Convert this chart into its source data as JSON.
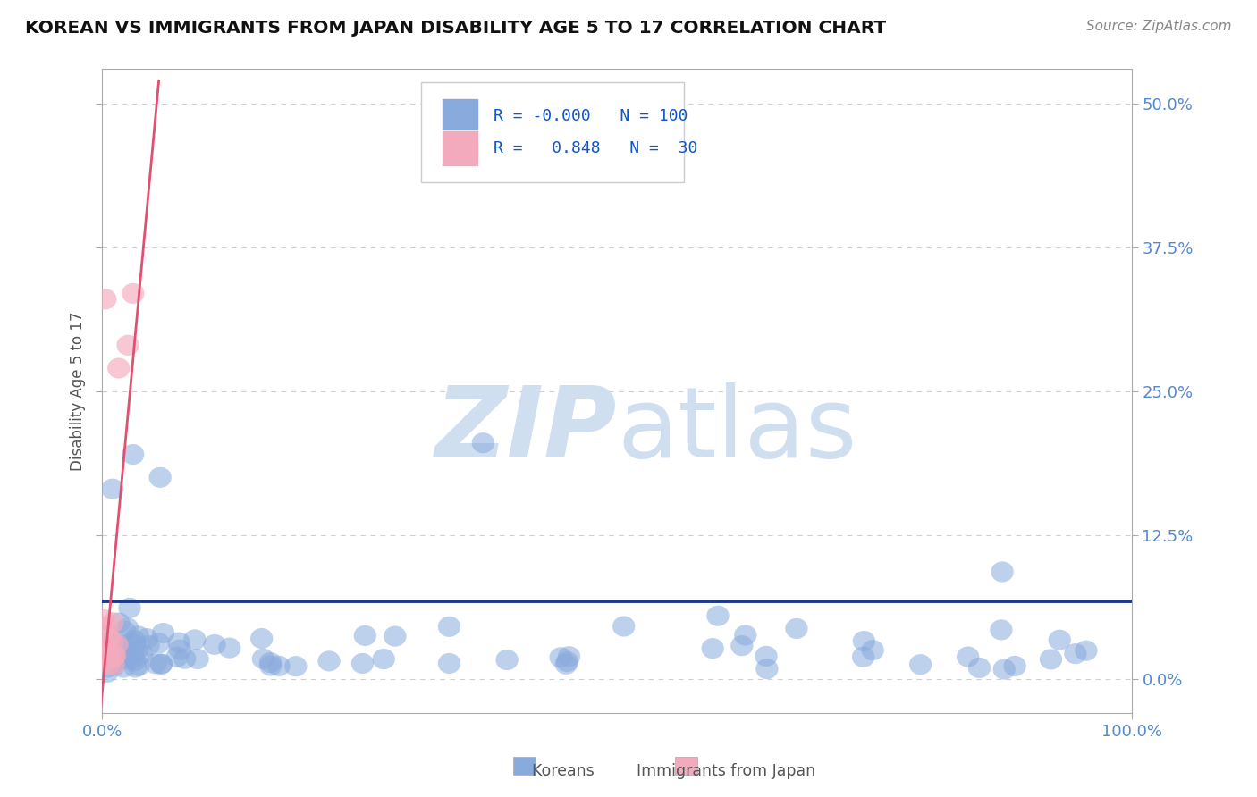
{
  "title": "KOREAN VS IMMIGRANTS FROM JAPAN DISABILITY AGE 5 TO 17 CORRELATION CHART",
  "source": "Source: ZipAtlas.com",
  "ylabel": "Disability Age 5 to 17",
  "xlim": [
    0.0,
    1.0
  ],
  "ylim": [
    -0.03,
    0.53
  ],
  "yticks": [
    0.0,
    0.125,
    0.25,
    0.375,
    0.5
  ],
  "ytick_labels": [
    "0.0%",
    "12.5%",
    "25.0%",
    "37.5%",
    "50.0%"
  ],
  "xtick_labels": [
    "0.0%",
    "100.0%"
  ],
  "legend_R1": "-0.000",
  "legend_N1": "100",
  "legend_R2": "0.848",
  "legend_N2": "30",
  "blue_color": "#88AADD",
  "pink_color": "#F4AABD",
  "trend_blue": "#1A3A8C",
  "trend_pink": "#E05070",
  "watermark_color": "#D0DFF0",
  "background_color": "#FFFFFF",
  "grid_color": "#BBBBBB",
  "title_color": "#111111",
  "axis_tick_color": "#5588CC",
  "ylabel_color": "#555555",
  "source_color": "#888888",
  "legend_text_color": "#1155CC",
  "legend_border_color": "#CCCCCC",
  "bottom_legend_text_color": "#555555"
}
